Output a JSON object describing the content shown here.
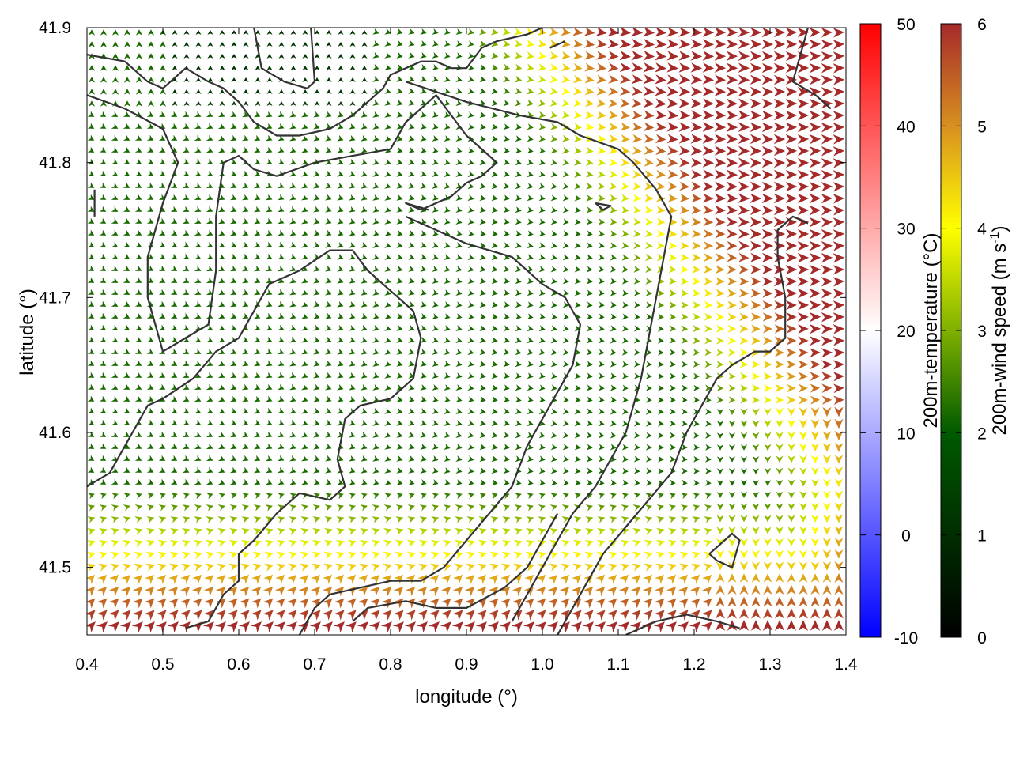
{
  "chart_data": {
    "type": "quiver-map",
    "xlabel": "longitude (°)",
    "ylabel": "latitude (°)",
    "xlim": [
      0.4,
      1.4
    ],
    "ylim": [
      41.45,
      41.9
    ],
    "x_ticks": [
      0.4,
      0.5,
      0.6,
      0.7,
      0.8,
      0.9,
      1.0,
      1.1,
      1.2,
      1.3,
      1.4
    ],
    "y_ticks": [
      41.5,
      41.6,
      41.7,
      41.8,
      41.9
    ],
    "x_tick_labels": [
      "0.4",
      "0.5",
      "0.6",
      "0.7",
      "0.8",
      "0.9",
      "1.0",
      "1.1",
      "1.2",
      "1.3",
      "1.4"
    ],
    "y_tick_labels": [
      "41.5",
      "41.6",
      "41.7",
      "41.8",
      "41.9"
    ],
    "grid": false,
    "temperature_colorbar": {
      "label": "200m-temperature (°C)",
      "range": [
        -10,
        50
      ],
      "ticks": [
        -10,
        0,
        10,
        20,
        30,
        40,
        50
      ],
      "tick_labels": [
        "-10",
        "0",
        "10",
        "20",
        "30",
        "40",
        "50"
      ],
      "colors": [
        "#0000ff",
        "#ffffff",
        "#ff0000"
      ]
    },
    "wind_colorbar": {
      "label_main": "200m-wind speed (m s",
      "label_sup": "-1",
      "label_end": ")",
      "range": [
        0,
        6
      ],
      "ticks": [
        0,
        1,
        2,
        3,
        4,
        5,
        6
      ],
      "tick_labels": [
        "0",
        "1",
        "2",
        "3",
        "4",
        "5",
        "6"
      ],
      "colors": [
        "#000000",
        "#005a00",
        "#7fb000",
        "#ffff00",
        "#d89020",
        "#a52a2a"
      ]
    },
    "wind_field_description": "Gridded wind arrows; weak easterly/northeasterly flow (1.5-3 m/s) over the north-west, strengthening to 4-6 m/s in the south and south-east with northerly/southerly flow.",
    "wind_regions": [
      {
        "region": "north-west",
        "speed": 1.5
      },
      {
        "region": "centre",
        "speed": 2.5
      },
      {
        "region": "south",
        "speed": 5.5
      },
      {
        "region": "south-east",
        "speed": 6
      }
    ],
    "contour_lines": [
      [
        [
          0.62,
          41.9
        ],
        [
          0.63,
          41.87
        ],
        [
          0.66,
          41.86
        ],
        [
          0.69,
          41.855
        ],
        [
          0.7,
          41.86
        ],
        [
          0.695,
          41.9
        ]
      ],
      [
        [
          0.52,
          41.9
        ],
        [
          0.55,
          41.905
        ]
      ],
      [
        [
          0.4,
          41.88
        ],
        [
          0.45,
          41.875
        ],
        [
          0.48,
          41.86
        ],
        [
          0.5,
          41.855
        ],
        [
          0.53,
          41.87
        ],
        [
          0.56,
          41.86
        ],
        [
          0.58,
          41.855
        ],
        [
          0.6,
          41.845
        ],
        [
          0.62,
          41.83
        ],
        [
          0.65,
          41.82
        ],
        [
          0.68,
          41.82
        ],
        [
          0.72,
          41.825
        ],
        [
          0.75,
          41.835
        ],
        [
          0.79,
          41.855
        ],
        [
          0.8,
          41.865
        ],
        [
          0.82,
          41.87
        ],
        [
          0.84,
          41.875
        ],
        [
          0.86,
          41.875
        ],
        [
          0.88,
          41.87
        ],
        [
          0.9,
          41.87
        ],
        [
          0.92,
          41.885
        ],
        [
          0.94,
          41.89
        ],
        [
          0.98,
          41.895
        ],
        [
          1.0,
          41.9
        ],
        [
          1.04,
          41.9
        ]
      ],
      [
        [
          1.01,
          41.885
        ],
        [
          1.03,
          41.89
        ]
      ],
      [
        [
          0.4,
          41.85
        ],
        [
          0.45,
          41.84
        ],
        [
          0.5,
          41.825
        ],
        [
          0.52,
          41.8
        ],
        [
          0.5,
          41.77
        ],
        [
          0.48,
          41.73
        ],
        [
          0.48,
          41.7
        ],
        [
          0.5,
          41.66
        ],
        [
          0.53,
          41.67
        ],
        [
          0.56,
          41.68
        ],
        [
          0.57,
          41.72
        ],
        [
          0.57,
          41.76
        ],
        [
          0.58,
          41.8
        ],
        [
          0.6,
          41.805
        ],
        [
          0.62,
          41.795
        ],
        [
          0.65,
          41.79
        ],
        [
          0.7,
          41.8
        ],
        [
          0.75,
          41.805
        ],
        [
          0.8,
          41.81
        ],
        [
          0.82,
          41.83
        ],
        [
          0.84,
          41.84
        ],
        [
          0.86,
          41.85
        ],
        [
          0.9,
          41.82
        ],
        [
          0.94,
          41.8
        ],
        [
          0.92,
          41.79
        ],
        [
          0.9,
          41.785
        ],
        [
          0.88,
          41.775
        ],
        [
          0.86,
          41.77
        ],
        [
          0.84,
          41.765
        ],
        [
          0.82,
          41.77
        ],
        [
          0.85,
          41.765
        ]
      ],
      [
        [
          0.82,
          41.86
        ],
        [
          0.9,
          41.845
        ],
        [
          0.97,
          41.835
        ],
        [
          1.02,
          41.83
        ],
        [
          1.05,
          41.82
        ],
        [
          1.1,
          41.81
        ],
        [
          1.12,
          41.8
        ],
        [
          1.15,
          41.78
        ],
        [
          1.17,
          41.76
        ],
        [
          1.16,
          41.73
        ],
        [
          1.15,
          41.7
        ],
        [
          1.14,
          41.67
        ],
        [
          1.13,
          41.64
        ],
        [
          1.12,
          41.62
        ],
        [
          1.11,
          41.6
        ],
        [
          1.09,
          41.58
        ],
        [
          1.07,
          41.56
        ],
        [
          1.04,
          41.54
        ],
        [
          1.02,
          41.52
        ],
        [
          1.0,
          41.5
        ],
        [
          0.98,
          41.48
        ],
        [
          0.96,
          41.46
        ]
      ],
      [
        [
          0.82,
          41.76
        ],
        [
          0.86,
          41.75
        ],
        [
          0.9,
          41.74
        ],
        [
          0.96,
          41.73
        ],
        [
          1.0,
          41.71
        ],
        [
          1.03,
          41.7
        ],
        [
          1.05,
          41.68
        ],
        [
          1.04,
          41.65
        ],
        [
          1.02,
          41.63
        ],
        [
          1.0,
          41.61
        ],
        [
          0.98,
          41.59
        ],
        [
          0.96,
          41.56
        ],
        [
          0.93,
          41.54
        ],
        [
          0.9,
          41.52
        ],
        [
          0.87,
          41.5
        ],
        [
          0.84,
          41.49
        ],
        [
          0.8,
          41.49
        ],
        [
          0.76,
          41.485
        ],
        [
          0.72,
          41.48
        ],
        [
          0.7,
          41.47
        ],
        [
          0.68,
          41.45
        ]
      ],
      [
        [
          0.4,
          41.56
        ],
        [
          0.43,
          41.57
        ],
        [
          0.46,
          41.6
        ],
        [
          0.48,
          41.62
        ],
        [
          0.5,
          41.625
        ],
        [
          0.54,
          41.64
        ],
        [
          0.57,
          41.66
        ],
        [
          0.6,
          41.67
        ],
        [
          0.62,
          41.69
        ],
        [
          0.64,
          41.71
        ],
        [
          0.68,
          41.72
        ],
        [
          0.72,
          41.735
        ],
        [
          0.75,
          41.735
        ],
        [
          0.77,
          41.72
        ],
        [
          0.8,
          41.705
        ],
        [
          0.83,
          41.69
        ],
        [
          0.84,
          41.67
        ],
        [
          0.83,
          41.64
        ],
        [
          0.8,
          41.625
        ],
        [
          0.76,
          41.62
        ],
        [
          0.74,
          41.61
        ],
        [
          0.73,
          41.58
        ],
        [
          0.74,
          41.56
        ],
        [
          0.72,
          41.55
        ],
        [
          0.68,
          41.555
        ],
        [
          0.65,
          41.54
        ],
        [
          0.62,
          41.52
        ],
        [
          0.6,
          41.51
        ],
        [
          0.6,
          41.49
        ],
        [
          0.58,
          41.48
        ],
        [
          0.56,
          41.46
        ],
        [
          0.53,
          41.455
        ]
      ],
      [
        [
          0.75,
          41.46
        ],
        [
          0.77,
          41.47
        ],
        [
          0.82,
          41.475
        ],
        [
          0.86,
          41.47
        ],
        [
          0.9,
          41.47
        ],
        [
          0.95,
          41.485
        ],
        [
          0.98,
          41.5
        ],
        [
          1.0,
          41.52
        ],
        [
          1.02,
          41.54
        ]
      ],
      [
        [
          1.02,
          41.45
        ],
        [
          1.05,
          41.48
        ],
        [
          1.08,
          41.51
        ],
        [
          1.11,
          41.53
        ],
        [
          1.14,
          41.55
        ],
        [
          1.17,
          41.57
        ],
        [
          1.19,
          41.6
        ],
        [
          1.21,
          41.62
        ],
        [
          1.23,
          41.64
        ],
        [
          1.25,
          41.65
        ],
        [
          1.28,
          41.66
        ],
        [
          1.3,
          41.66
        ],
        [
          1.32,
          41.67
        ],
        [
          1.32,
          41.7
        ],
        [
          1.31,
          41.73
        ],
        [
          1.31,
          41.75
        ],
        [
          1.33,
          41.76
        ],
        [
          1.35,
          41.755
        ]
      ],
      [
        [
          1.22,
          41.51
        ],
        [
          1.25,
          41.525
        ],
        [
          1.26,
          41.52
        ],
        [
          1.25,
          41.5
        ],
        [
          1.23,
          41.505
        ],
        [
          1.22,
          41.51
        ]
      ],
      [
        [
          1.11,
          41.45
        ],
        [
          1.15,
          41.46
        ],
        [
          1.19,
          41.465
        ],
        [
          1.23,
          41.46
        ],
        [
          1.26,
          41.455
        ]
      ],
      [
        [
          1.35,
          41.9
        ],
        [
          1.34,
          41.88
        ],
        [
          1.33,
          41.86
        ],
        [
          1.36,
          41.85
        ],
        [
          1.38,
          41.84
        ]
      ],
      [
        [
          1.07,
          41.77
        ],
        [
          1.08,
          41.765
        ],
        [
          1.09,
          41.768
        ],
        [
          1.07,
          41.77
        ]
      ],
      [
        [
          0.41,
          41.78
        ],
        [
          0.41,
          41.76
        ]
      ]
    ]
  }
}
